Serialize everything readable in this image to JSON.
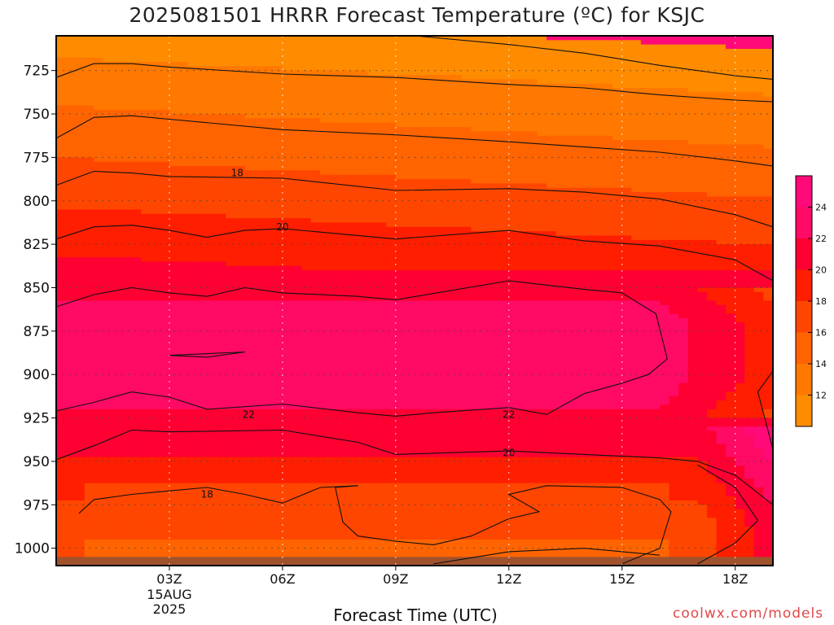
{
  "chart_data": {
    "type": "heatmap",
    "title": "2025081501 HRRR Forecast Temperature (ºC) for KSJC",
    "xlabel": "Forecast Time (UTC)",
    "ylabel": "",
    "x_ticks": [
      "03Z",
      "06Z",
      "09Z",
      "12Z",
      "15Z",
      "18Z"
    ],
    "x_date_label": [
      "15AUG",
      "2025"
    ],
    "y_ticks": [
      725,
      750,
      775,
      800,
      825,
      850,
      875,
      900,
      925,
      950,
      975,
      1000
    ],
    "y_axis": "pressure (hPa), reversed",
    "x_range_hours": [
      0,
      19
    ],
    "y_range": [
      705,
      1010
    ],
    "colorbar": {
      "ticks": [
        12,
        14,
        16,
        18,
        20,
        22,
        24
      ],
      "bins": [
        {
          "lo": 10,
          "hi": 12,
          "color": "#ff8c00"
        },
        {
          "lo": 12,
          "hi": 14,
          "color": "#ff7800"
        },
        {
          "lo": 14,
          "hi": 16,
          "color": "#ff6400"
        },
        {
          "lo": 16,
          "hi": 18,
          "color": "#ff4600"
        },
        {
          "lo": 18,
          "hi": 20,
          "color": "#ff1e00"
        },
        {
          "lo": 20,
          "hi": 22,
          "color": "#ff0032"
        },
        {
          "lo": 22,
          "hi": 24,
          "color": "#ff0a64"
        },
        {
          "lo": 24,
          "hi": 26,
          "color": "#ff0a78"
        }
      ],
      "position": "right"
    },
    "contour_labels": [
      {
        "value": "18",
        "x": 4.8,
        "y": 784
      },
      {
        "value": "20",
        "x": 6.0,
        "y": 815
      },
      {
        "value": "22",
        "x": 5.1,
        "y": 923
      },
      {
        "value": "22",
        "x": 12.0,
        "y": 923
      },
      {
        "value": "20",
        "x": 12.0,
        "y": 945
      },
      {
        "value": "18",
        "x": 4.0,
        "y": 969
      }
    ],
    "contours": [
      {
        "level": 14,
        "points": [
          [
            0,
            729
          ],
          [
            1,
            721
          ],
          [
            2,
            721
          ],
          [
            3,
            723
          ],
          [
            6,
            727
          ],
          [
            9,
            729
          ],
          [
            12,
            733
          ],
          [
            14,
            735
          ],
          [
            16,
            739
          ],
          [
            18,
            742
          ],
          [
            19,
            743
          ]
        ]
      },
      {
        "level": 12,
        "points": [
          [
            9.5,
            705
          ],
          [
            12,
            710
          ],
          [
            14,
            715
          ],
          [
            16,
            722
          ],
          [
            18,
            728
          ],
          [
            19,
            730
          ]
        ]
      },
      {
        "level": 16,
        "points": [
          [
            0,
            764
          ],
          [
            1,
            752
          ],
          [
            2,
            751
          ],
          [
            3,
            753
          ],
          [
            6,
            759
          ],
          [
            9,
            762
          ],
          [
            12,
            766
          ],
          [
            14,
            769
          ],
          [
            16,
            772
          ],
          [
            18,
            777
          ],
          [
            19,
            780
          ]
        ]
      },
      {
        "level": 18,
        "points": [
          [
            0,
            791
          ],
          [
            1,
            783
          ],
          [
            2,
            784
          ],
          [
            3,
            786
          ],
          [
            6,
            787
          ],
          [
            9,
            794
          ],
          [
            12,
            793
          ],
          [
            14,
            795
          ],
          [
            16,
            799
          ],
          [
            18,
            808
          ],
          [
            19,
            815
          ]
        ]
      },
      {
        "level": 20,
        "points": [
          [
            0,
            822
          ],
          [
            1,
            815
          ],
          [
            2,
            814
          ],
          [
            3,
            817
          ],
          [
            4,
            821
          ],
          [
            5,
            817
          ],
          [
            6,
            816
          ],
          [
            9,
            822
          ],
          [
            12,
            817
          ],
          [
            14,
            823
          ],
          [
            16,
            826
          ],
          [
            18,
            834
          ],
          [
            19,
            846
          ]
        ]
      },
      {
        "level": 22,
        "points": [
          [
            0,
            861
          ],
          [
            1,
            854
          ],
          [
            2,
            850
          ],
          [
            3,
            853
          ],
          [
            4,
            855
          ],
          [
            5,
            850
          ],
          [
            6,
            853
          ],
          [
            8,
            855
          ],
          [
            9,
            857
          ],
          [
            12,
            846
          ],
          [
            14,
            851
          ],
          [
            15,
            853
          ],
          [
            15.9,
            865
          ],
          [
            16.2,
            891
          ],
          [
            15.7,
            900
          ],
          [
            15,
            905
          ],
          [
            14,
            911
          ],
          [
            13,
            923
          ],
          [
            12,
            919
          ],
          [
            10,
            922
          ],
          [
            9,
            924
          ],
          [
            8,
            922
          ],
          [
            6,
            917
          ],
          [
            4,
            920
          ],
          [
            3,
            913
          ],
          [
            2,
            910
          ],
          [
            1,
            916
          ],
          [
            0,
            921
          ]
        ]
      },
      {
        "level": 24,
        "points": [
          [
            3,
            889
          ],
          [
            4,
            888
          ],
          [
            5,
            887
          ],
          [
            4,
            890
          ],
          [
            3,
            889
          ]
        ]
      },
      {
        "level": 20,
        "points": [
          [
            0,
            949
          ],
          [
            1,
            941
          ],
          [
            2,
            932
          ],
          [
            3,
            933
          ],
          [
            6,
            932
          ],
          [
            8,
            939
          ],
          [
            9,
            946
          ],
          [
            12,
            944
          ],
          [
            14,
            946
          ],
          [
            16,
            948
          ],
          [
            17,
            950
          ],
          [
            18,
            958
          ],
          [
            19,
            975
          ]
        ]
      },
      {
        "level": 22,
        "points": [
          [
            19,
            943
          ],
          [
            18.6,
            910
          ],
          [
            19,
            898
          ]
        ]
      },
      {
        "level": 18,
        "points": [
          [
            0.6,
            980
          ],
          [
            1,
            972
          ],
          [
            2,
            969
          ],
          [
            3,
            967
          ],
          [
            4,
            965
          ],
          [
            5,
            969
          ],
          [
            6,
            974
          ],
          [
            7,
            965
          ],
          [
            8,
            964
          ],
          [
            7.4,
            965
          ],
          [
            7.6,
            985
          ],
          [
            8,
            993
          ],
          [
            9,
            996
          ],
          [
            10,
            998
          ],
          [
            11,
            993
          ],
          [
            12,
            983
          ],
          [
            12.8,
            979
          ],
          [
            12,
            969
          ],
          [
            13,
            964
          ],
          [
            15,
            965
          ],
          [
            16,
            972
          ],
          [
            16.3,
            979
          ],
          [
            16,
            1000
          ],
          [
            15,
            1009
          ]
        ]
      },
      {
        "level": 20,
        "points": [
          [
            17,
            1009
          ],
          [
            18,
            997
          ],
          [
            18.6,
            984
          ],
          [
            18,
            965
          ],
          [
            17,
            952
          ]
        ]
      },
      {
        "level": 16,
        "points": [
          [
            10,
            1009
          ],
          [
            12,
            1002
          ],
          [
            14,
            1000
          ],
          [
            15,
            1002
          ],
          [
            16,
            1004
          ]
        ]
      }
    ]
  }
}
